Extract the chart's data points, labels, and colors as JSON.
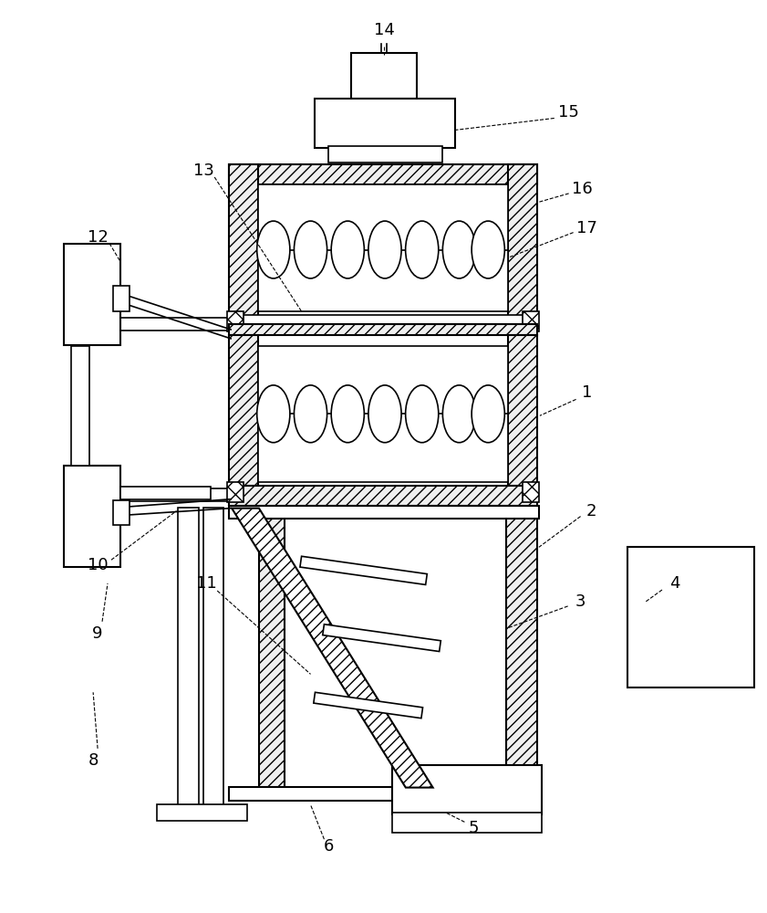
{
  "bg_color": "#ffffff",
  "lc": "#000000",
  "label_color": "#000000",
  "fig_w": 8.41,
  "fig_h": 10.0,
  "dpi": 100
}
